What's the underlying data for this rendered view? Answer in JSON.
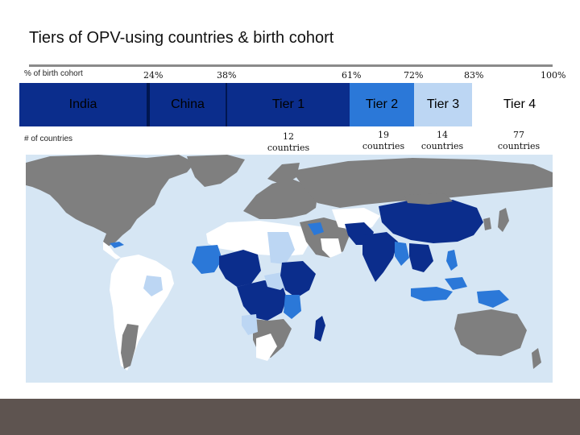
{
  "title": "Tiers of OPV-using countries & birth cohort",
  "header_labels": {
    "birth_cohort": "% of birth cohort",
    "num_countries": "# of countries"
  },
  "percent_ticks": [
    "24%",
    "38%",
    "61%",
    "72%",
    "83%",
    "100%"
  ],
  "tiers": [
    {
      "label": "India",
      "color": "#0b2d8c"
    },
    {
      "label": "China",
      "color": "#0b2d8c"
    },
    {
      "label": "Tier 1",
      "color": "#0b2d8c"
    },
    {
      "label": "Tier 2",
      "color": "#2b78d8"
    },
    {
      "label": "Tier 3",
      "color": "#bcd6f3"
    },
    {
      "label": "Tier 4",
      "color": "#ffffff"
    }
  ],
  "country_counts": [
    {
      "number": "12",
      "unit": "countries"
    },
    {
      "number": "19",
      "unit": "countries"
    },
    {
      "number": "14",
      "unit": "countries"
    },
    {
      "number": "77",
      "unit": "countries"
    }
  ],
  "map_colors": {
    "ocean": "#d6e6f4",
    "non_opv": "#7f7f7f",
    "tier1": "#0b2d8c",
    "tier2": "#2b78d8",
    "tier3": "#bcd6f3",
    "tier4": "#ffffff"
  },
  "footer_color": "#5e5450"
}
